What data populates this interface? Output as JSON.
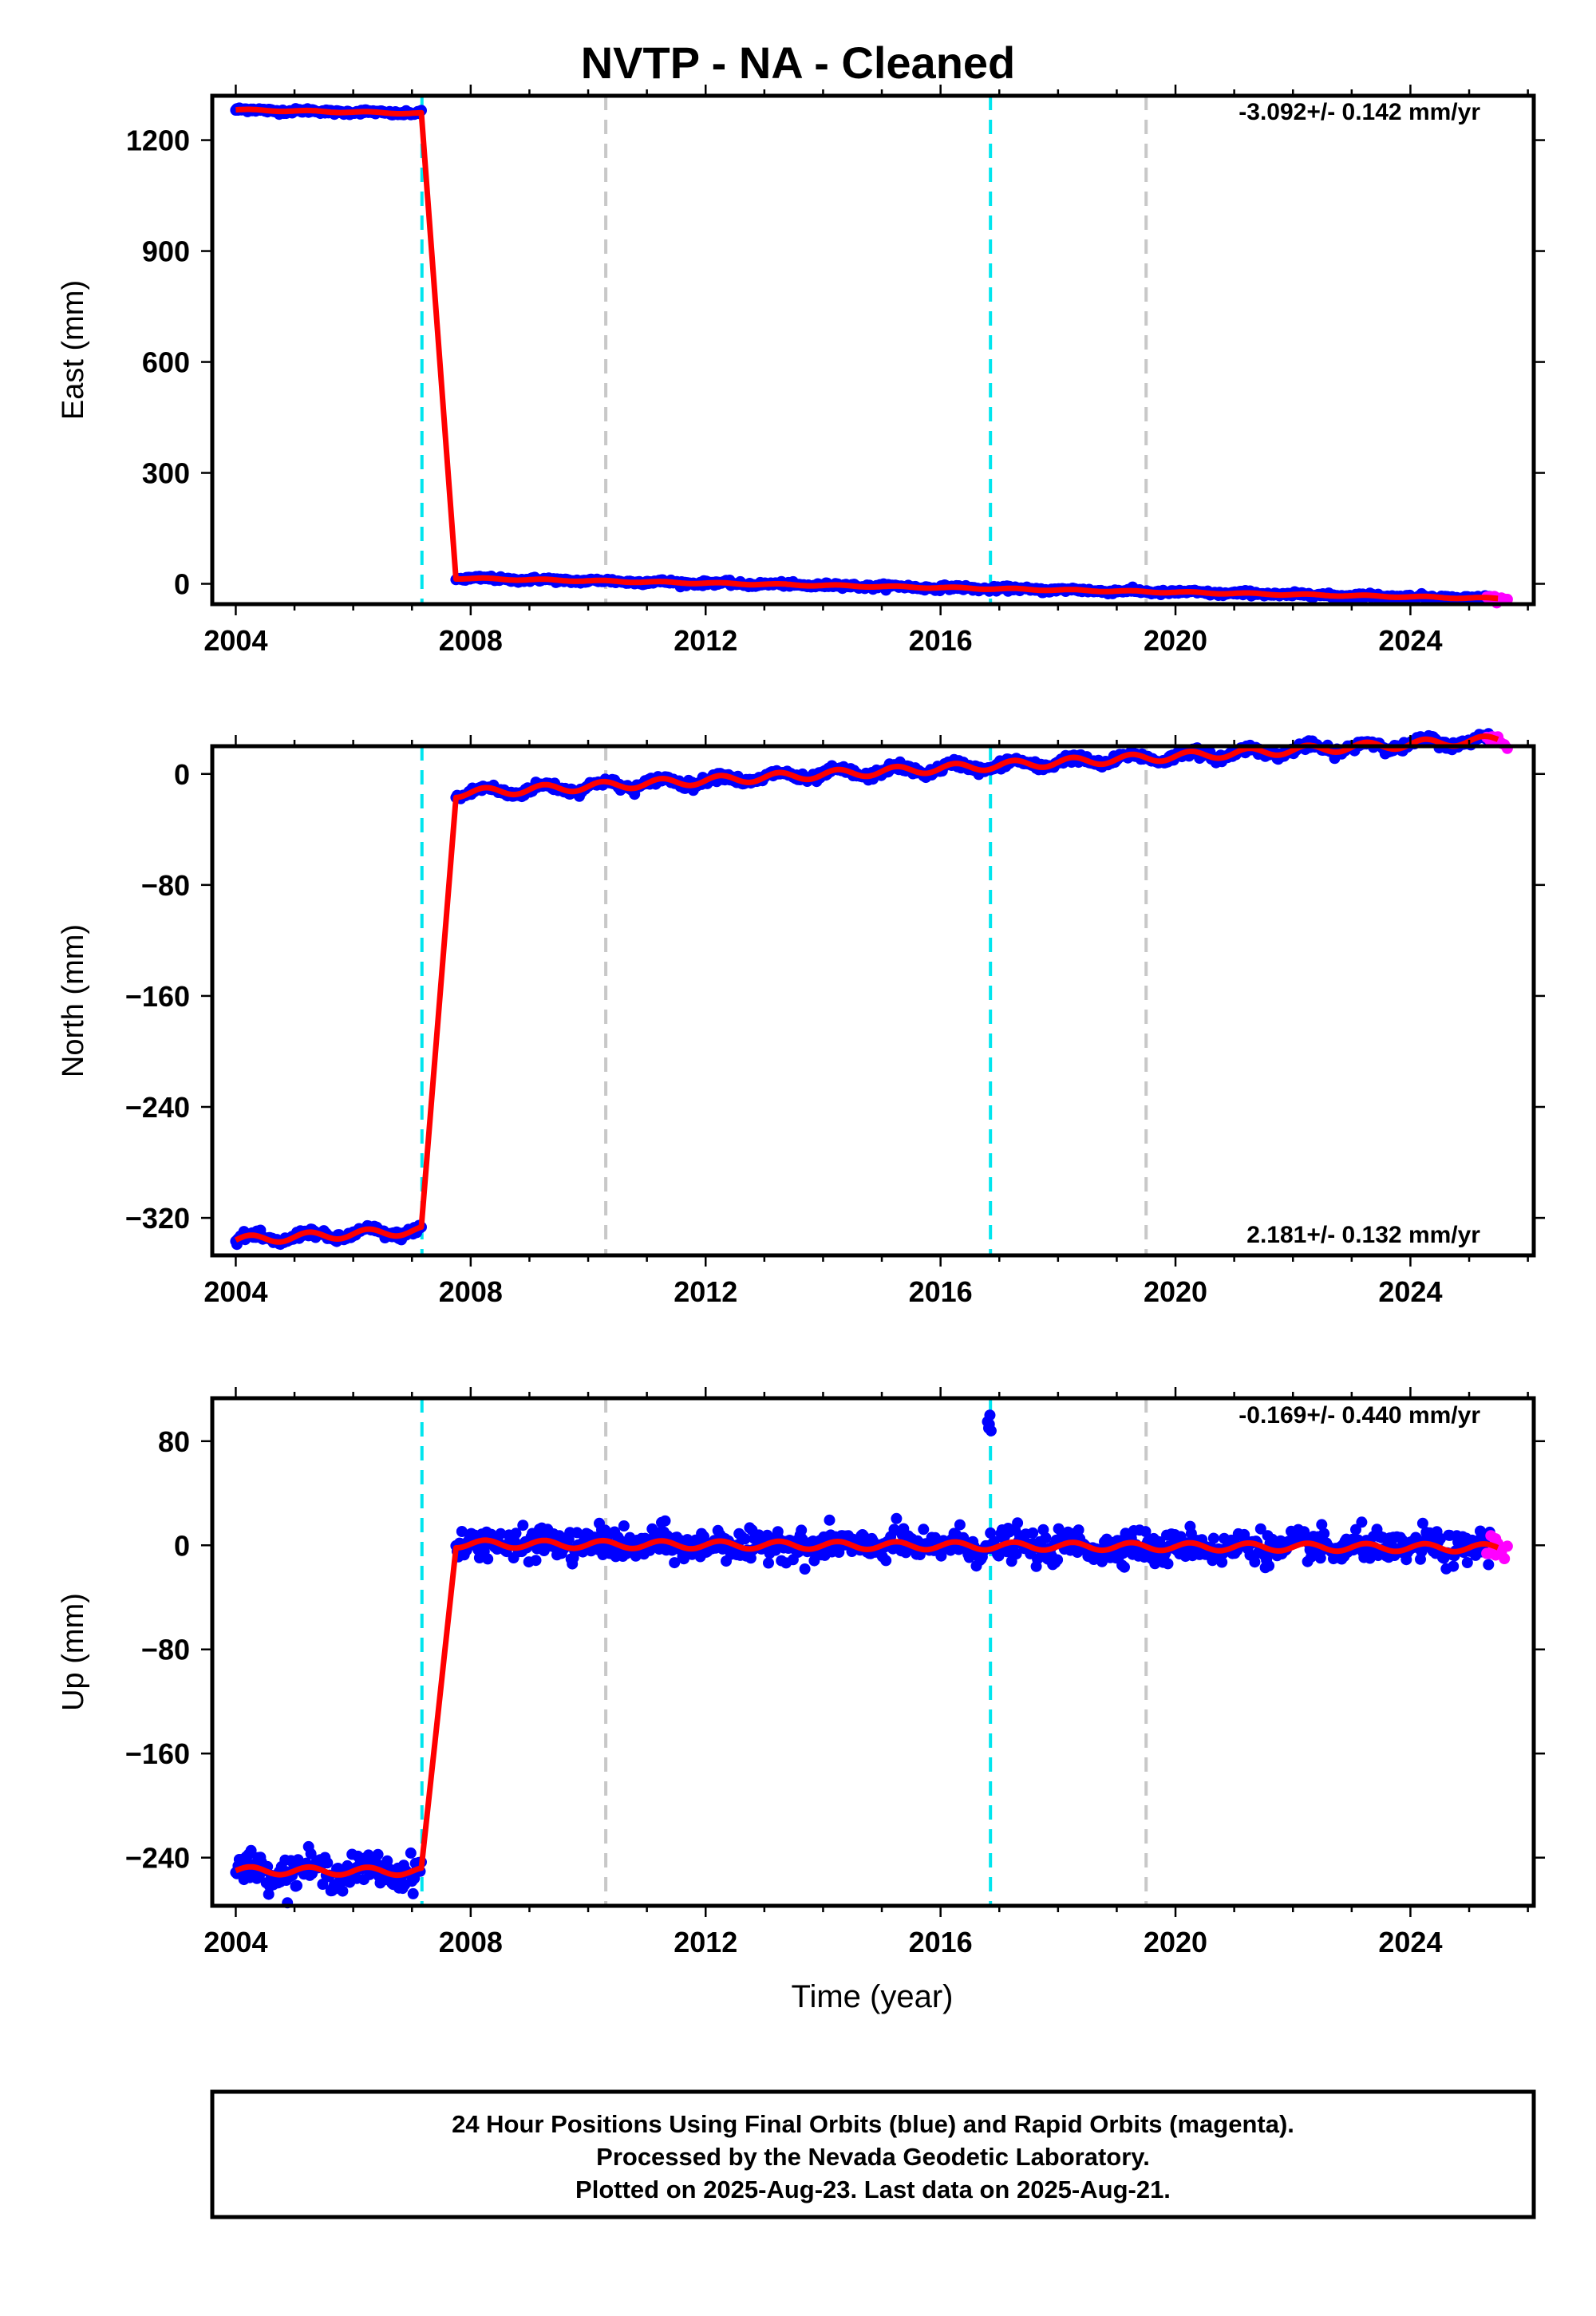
{
  "title": "NVTP  - NA - Cleaned",
  "colors": {
    "final_orbits": "#0000ff",
    "rapid_orbits": "#ff00ff",
    "model": "#ff0000",
    "equipment_change": "#00e5ee",
    "other_event": "#c8c8c8",
    "frame": "#000000"
  },
  "chart_data": [
    {
      "type": "scatter",
      "component": "East",
      "ylabel": "East (mm)",
      "xlim": [
        2003.6,
        2026.1
      ],
      "ylim": [
        -55,
        1320
      ],
      "xticks": [
        2004,
        2008,
        2012,
        2016,
        2020,
        2024
      ],
      "yticks": [
        0,
        300,
        600,
        900,
        1200
      ],
      "rate_label": "-3.092+/- 0.142 mm/yr",
      "segments": [
        {
          "start": 2004.0,
          "end": 2007.17,
          "offset": 1282,
          "rate": -3.092,
          "amplitude": 2,
          "noise": 3
        },
        {
          "start": 2007.75,
          "end": 2025.5,
          "offset": 15,
          "rate": -3.092,
          "amplitude": 2,
          "noise": 3
        }
      ],
      "events_cyan": [
        2007.17,
        2016.85
      ],
      "events_gray": [
        2010.3,
        2019.5
      ]
    },
    {
      "type": "scatter",
      "component": "North",
      "ylabel": "North (mm)",
      "xlim": [
        2003.6,
        2026.1
      ],
      "ylim": [
        -347,
        20
      ],
      "xticks": [
        2004,
        2008,
        2012,
        2016,
        2020,
        2024
      ],
      "yticks": [
        -320,
        -240,
        -160,
        -80,
        0
      ],
      "rate_label": "2.181+/- 0.132 mm/yr",
      "segments": [
        {
          "start": 2004.0,
          "end": 2007.17,
          "offset": -336,
          "rate": 2.181,
          "amplitude": 3,
          "noise": 1.5
        },
        {
          "start": 2007.75,
          "end": 2025.5,
          "offset": -14,
          "rate": 2.181,
          "amplitude": 3,
          "noise": 1.5
        }
      ],
      "events_cyan": [
        2007.17,
        2016.85
      ],
      "events_gray": [
        2010.3,
        2019.5
      ]
    },
    {
      "type": "scatter",
      "component": "Up",
      "ylabel": "Up (mm)",
      "xlabel": "Time (year)",
      "xlim": [
        2003.6,
        2026.1
      ],
      "ylim": [
        -277,
        113
      ],
      "xticks": [
        2004,
        2008,
        2012,
        2016,
        2020,
        2024
      ],
      "yticks": [
        -240,
        -160,
        -80,
        0,
        80
      ],
      "rate_label": "-0.169+/- 0.440 mm/yr",
      "segments": [
        {
          "start": 2004.0,
          "end": 2007.17,
          "offset": -250,
          "rate": -0.169,
          "amplitude": 3,
          "noise": 6
        },
        {
          "start": 2007.75,
          "end": 2025.5,
          "offset": 1,
          "rate": -0.169,
          "amplitude": 3,
          "noise": 6
        }
      ],
      "outliers": [
        {
          "x": 2016.8,
          "y": 95
        },
        {
          "x": 2016.82,
          "y": 90
        },
        {
          "x": 2016.84,
          "y": 100
        },
        {
          "x": 2016.86,
          "y": 88
        },
        {
          "x": 2016.83,
          "y": 93
        }
      ],
      "events_cyan": [
        2007.17,
        2016.85
      ],
      "events_gray": [
        2010.3,
        2019.5
      ]
    }
  ],
  "rapid_range": [
    2025.3,
    2025.65
  ],
  "footer": {
    "line1": "24 Hour Positions Using Final Orbits (blue) and Rapid Orbits (magenta).",
    "line2": "Processed by the Nevada Geodetic Laboratory.",
    "line3": "Plotted on 2025-Aug-23. Last data on 2025-Aug-21."
  }
}
